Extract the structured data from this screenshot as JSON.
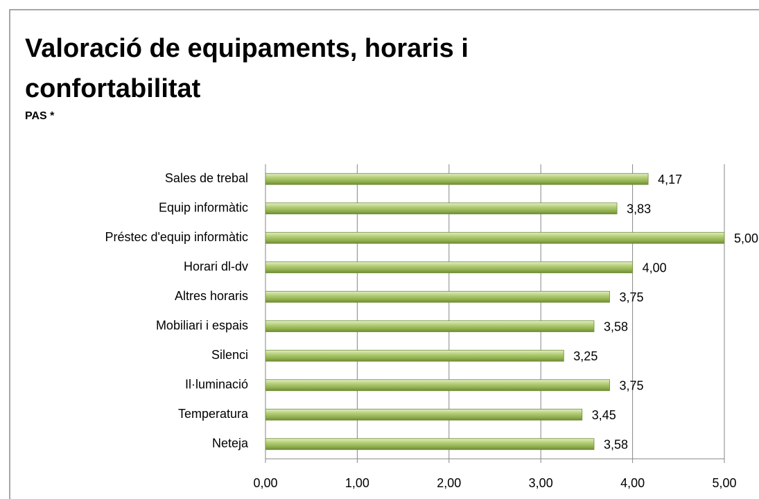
{
  "chart_data": {
    "type": "bar",
    "orientation": "horizontal",
    "title": "Valoració de equipaments, horaris i confortabilitat",
    "subtitle": "PAS *",
    "categories": [
      "Sales de trebal",
      "Equip informàtic",
      "Préstec d'equip informàtic",
      "Horari dl-dv",
      "Altres horaris",
      "Mobiliari i espais",
      "Silenci",
      "Il·luminació",
      "Temperatura",
      "Neteja"
    ],
    "values": [
      4.17,
      3.83,
      5.0,
      4.0,
      3.75,
      3.58,
      3.25,
      3.75,
      3.45,
      3.58
    ],
    "value_labels": [
      "4,17",
      "3,83",
      "5,00",
      "4,00",
      "3,75",
      "3,58",
      "3,25",
      "3,75",
      "3,45",
      "3,58"
    ],
    "color": "#9bbb59",
    "xlim": [
      0,
      5
    ],
    "xticks": [
      {
        "value": 0,
        "label": "0,00"
      },
      {
        "value": 1,
        "label": "1,00"
      },
      {
        "value": 2,
        "label": "2,00"
      },
      {
        "value": 3,
        "label": "3,00"
      },
      {
        "value": 4,
        "label": "4,00"
      },
      {
        "value": 5,
        "label": "5,00"
      }
    ],
    "grid": true
  }
}
